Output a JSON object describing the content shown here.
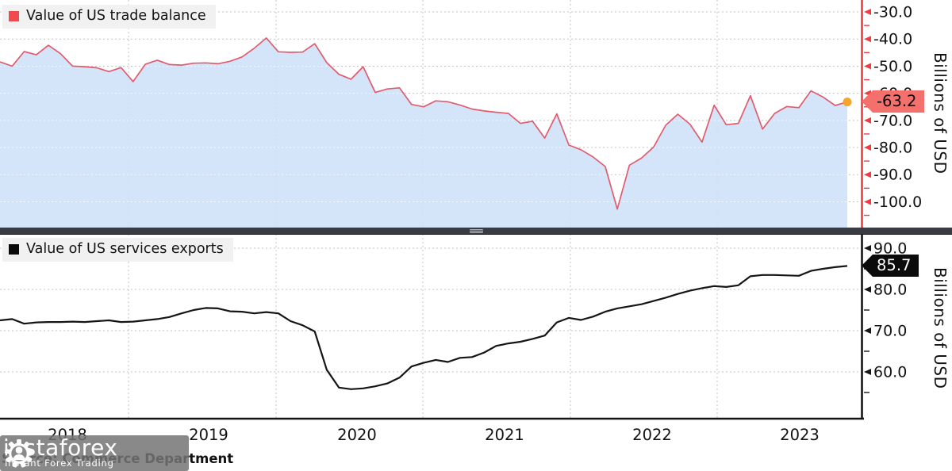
{
  "panels": [
    {
      "legend_label": "Value of US trade balance",
      "legend_swatch_color": "#ef4a4e",
      "axis_title": "Billions of USD",
      "axis_color": "#f23b41",
      "major_ticks": [
        -30,
        -40,
        -50,
        -60,
        -70,
        -80,
        -90,
        -100
      ],
      "tick_labels": [
        "-30.0",
        "-40.0",
        "-50.0",
        "-60.0",
        "-70.0",
        "-80.0",
        "-90.0",
        "-100.0"
      ],
      "minor_ticks": [
        -35,
        -45,
        -55,
        -65,
        -75,
        -85,
        -95,
        -105
      ],
      "last_value_label": "-63.2"
    },
    {
      "legend_label": "Value of US services exports",
      "legend_swatch_color": "#0b0b0b",
      "axis_title": "Billions of USD",
      "axis_color": "#151515",
      "major_ticks": [
        90,
        80,
        70,
        60
      ],
      "tick_labels": [
        "90.0",
        "80.0",
        "70.0",
        "60.0"
      ],
      "minor_ticks": [
        85,
        75,
        65,
        55
      ],
      "last_value_label": "85.7"
    }
  ],
  "x_axis": {
    "labels": [
      "2018",
      "2019",
      "2020",
      "2021",
      "2022",
      "2023"
    ]
  },
  "footer": {
    "source": "Source: Commerce Department"
  },
  "watermark": {
    "brand": "instaforex",
    "tagline": "Instant Forex Trading"
  },
  "chart_data": [
    {
      "type": "area",
      "title": "Value of US trade balance",
      "ylabel": "Billions of USD",
      "line_color": "#e05c6e",
      "fill_color": "#cfe2f8",
      "endpoint_marker_color": "#f6a42c",
      "x_range": [
        "2018",
        "2023"
      ],
      "x_frequency": "monthly",
      "ylim": [
        -109.5,
        -25.6
      ],
      "last_value": -63.2,
      "values": [
        -48.4,
        -50.0,
        -44.6,
        -45.8,
        -42.3,
        -45.4,
        -50.0,
        -50.2,
        -50.6,
        -52.0,
        -50.5,
        -55.7,
        -49.3,
        -47.8,
        -49.4,
        -49.6,
        -48.9,
        -48.8,
        -49.1,
        -48.2,
        -46.6,
        -43.4,
        -39.6,
        -44.7,
        -44.9,
        -44.8,
        -41.7,
        -48.7,
        -53.0,
        -54.8,
        -50.2,
        -59.7,
        -58.4,
        -58.0,
        -64.1,
        -65.0,
        -62.8,
        -63.1,
        -64.3,
        -65.8,
        -66.5,
        -67.0,
        -67.4,
        -71.1,
        -70.3,
        -76.5,
        -67.6,
        -79.1,
        -80.8,
        -83.5,
        -87.0,
        -102.7,
        -86.5,
        -83.9,
        -79.8,
        -71.8,
        -67.7,
        -71.4,
        -78.0,
        -64.4,
        -71.6,
        -71.1,
        -60.9,
        -73.2,
        -67.4,
        -64.9,
        -65.3,
        -59.1,
        -61.4,
        -64.5,
        -63.2
      ]
    },
    {
      "type": "line",
      "title": "Value of US services exports",
      "ylabel": "Billions of USD",
      "line_color": "#151515",
      "x_range": [
        "2018",
        "2023"
      ],
      "x_frequency": "monthly",
      "ylim": [
        48.7,
        93.5
      ],
      "last_value": 85.7,
      "values": [
        72.5,
        72.8,
        71.7,
        72.0,
        72.1,
        72.1,
        72.2,
        72.1,
        72.3,
        72.5,
        72.1,
        72.2,
        72.5,
        72.8,
        73.3,
        74.2,
        75.0,
        75.5,
        75.4,
        74.7,
        74.6,
        74.2,
        74.5,
        74.2,
        72.3,
        71.3,
        69.8,
        60.5,
        56.2,
        55.8,
        56.0,
        56.5,
        57.2,
        58.6,
        61.3,
        62.2,
        62.9,
        62.4,
        63.4,
        63.6,
        64.7,
        66.3,
        66.9,
        67.3,
        68.0,
        68.8,
        72.0,
        73.1,
        72.6,
        73.4,
        74.6,
        75.4,
        75.9,
        76.4,
        77.2,
        78.0,
        78.9,
        79.7,
        80.3,
        80.8,
        80.6,
        81.0,
        83.2,
        83.5,
        83.5,
        83.4,
        83.3,
        84.5,
        85.0,
        85.4,
        85.7
      ]
    }
  ]
}
